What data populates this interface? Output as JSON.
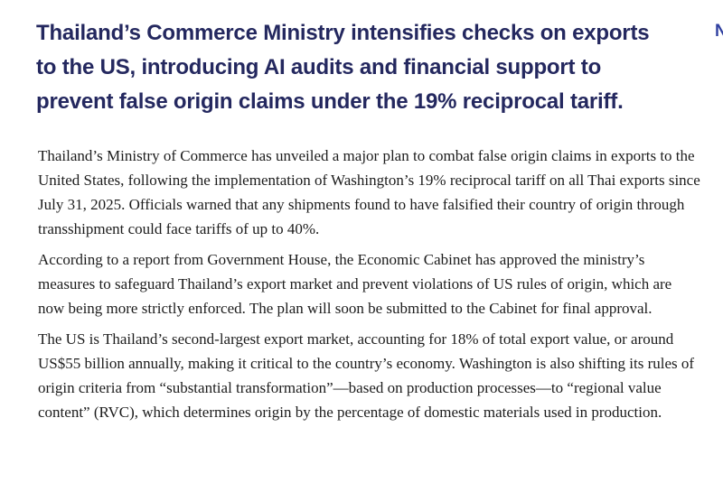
{
  "page": {
    "background_color": "#ffffff"
  },
  "nav": {
    "partial_letter": "N",
    "color": "#3040a0"
  },
  "headline": {
    "color": "#24285f",
    "lines": [
      "Thailand’s Commerce Ministry intensifies checks on exports",
      "to the US, introducing AI audits and financial support to",
      "prevent false origin claims under the 19% reciprocal tariff."
    ]
  },
  "article": {
    "text_color": "#1c1c1c",
    "paragraphs": [
      "Thailand’s Ministry of Commerce has unveiled a major plan to combat false origin claims in exports to the United States, following the implementation of Washington’s 19% reciprocal tariff on all Thai exports since July 31, 2025. Officials warned that any shipments found to have falsified their country of origin through transshipment could face tariffs of up to 40%.",
      "According to a report from Government House, the Economic Cabinet has approved the ministry’s measures to safeguard Thailand’s export market and prevent violations of US rules of origin, which are now being more strictly enforced. The plan will soon be submitted to the Cabinet for final approval.",
      "The US is Thailand’s second-largest export market, accounting for 18% of total export value, or around US$55 billion annually, making it critical to the country’s economy. Washington is also shifting its rules of origin criteria from “substantial transformation”—based on production processes—to “regional value content” (RVC), which determines origin by the percentage of domestic materials used in production."
    ]
  }
}
